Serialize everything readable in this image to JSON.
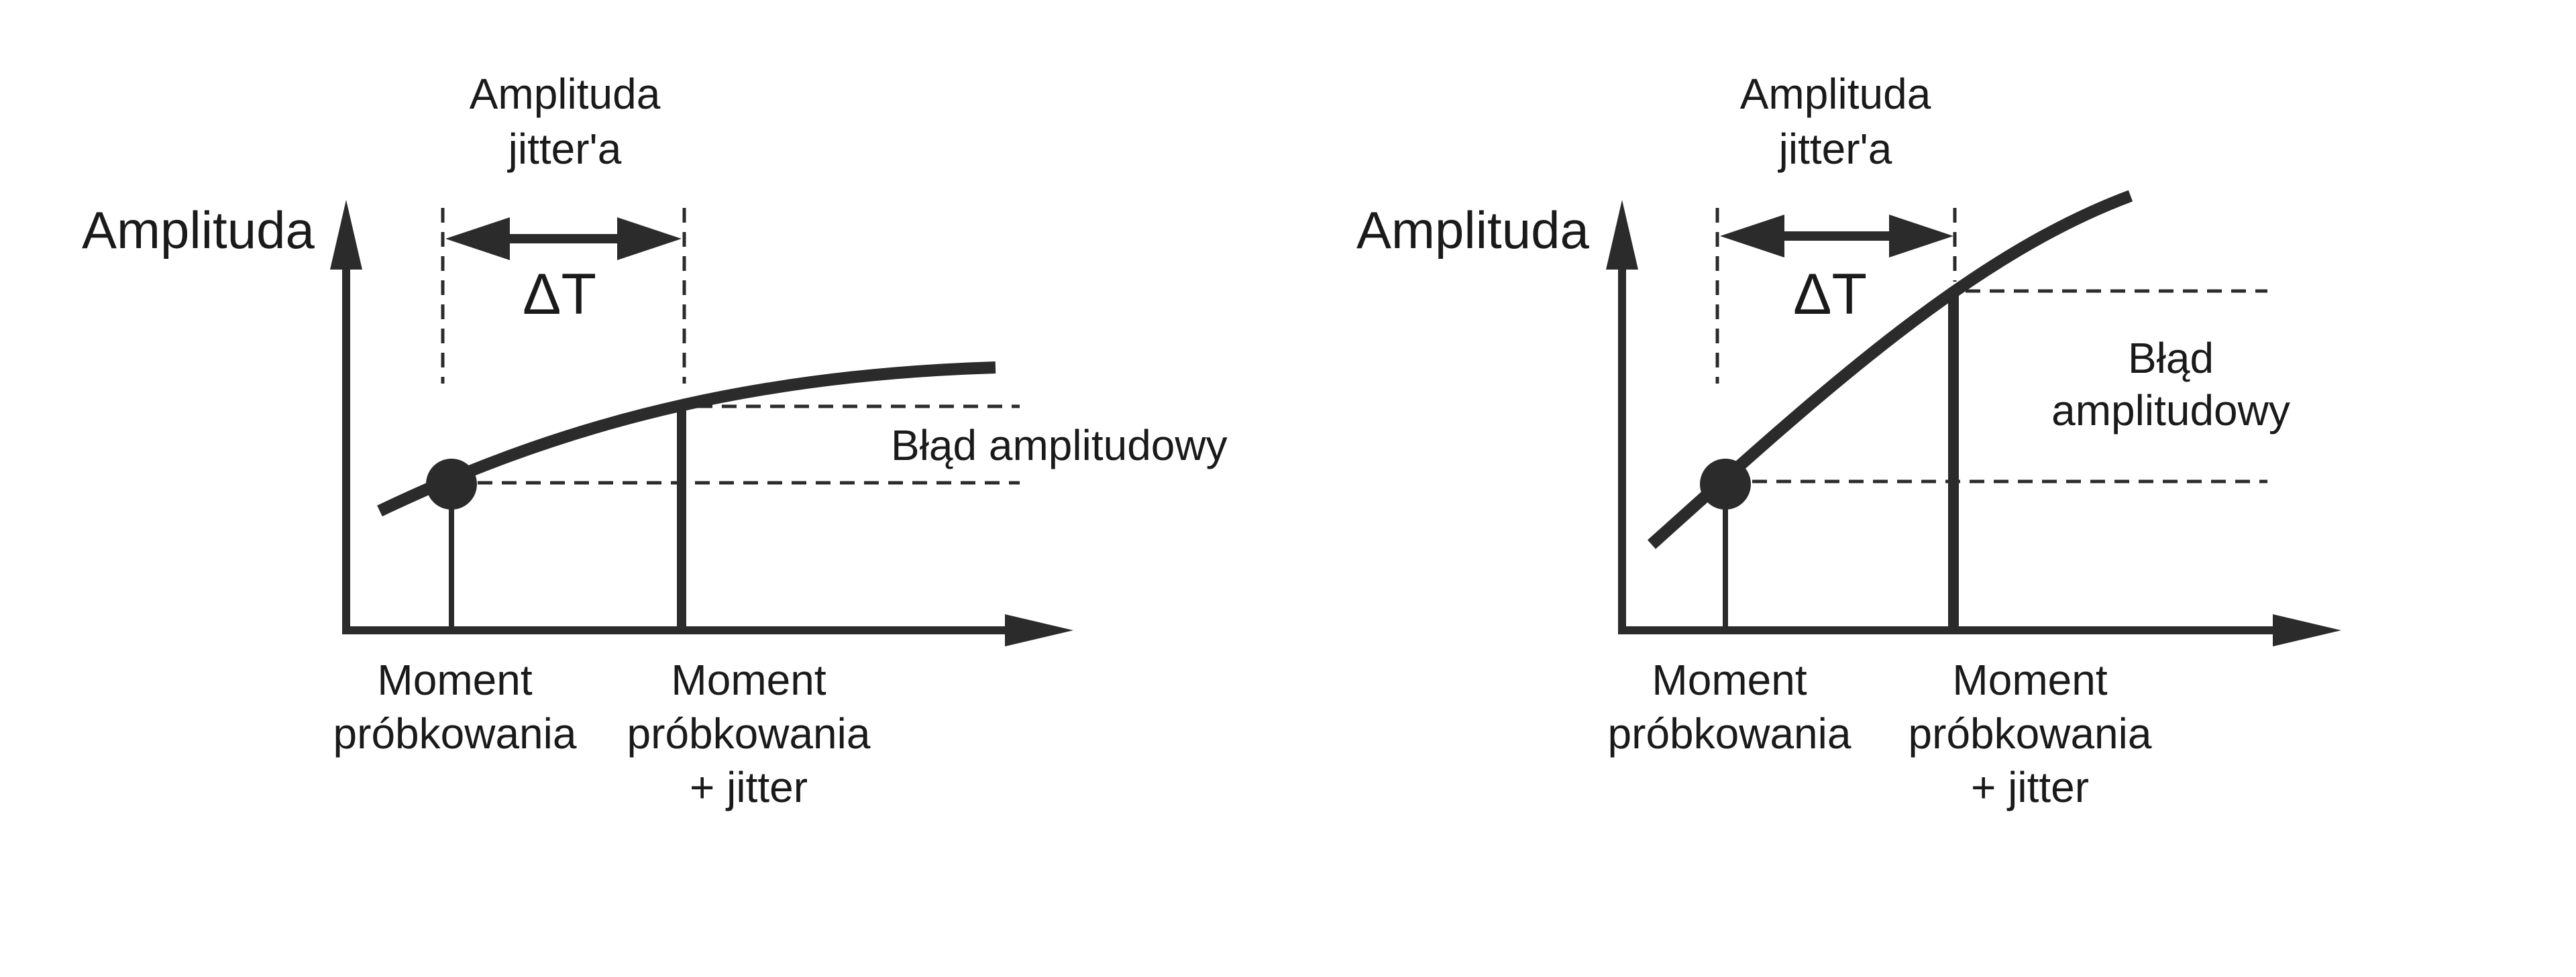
{
  "colors": {
    "ink": "#2b2b2b",
    "background": "#ffffff"
  },
  "panels": [
    {
      "id": "left",
      "y_axis_label": "Amplituda",
      "jitter_title_line1": "Amplituda",
      "jitter_title_line2": "jitter'a",
      "delta_label": "ΔT",
      "error_label_line1": "Błąd amplitudowy",
      "error_label_line2": "",
      "sample_label_line1": "Moment",
      "sample_label_line2": "próbkowania",
      "jitter_sample_label_line1": "Moment",
      "jitter_sample_label_line2": "próbkowania",
      "jitter_sample_label_line3": "+ jitter"
    },
    {
      "id": "right",
      "y_axis_label": "Amplituda",
      "jitter_title_line1": "Amplituda",
      "jitter_title_line2": "jitter'a",
      "delta_label": "ΔT",
      "error_label_line1": "Błąd",
      "error_label_line2": "amplitudowy",
      "sample_label_line1": "Moment",
      "sample_label_line2": "próbkowania",
      "jitter_sample_label_line1": "Moment",
      "jitter_sample_label_line2": "próbkowania",
      "jitter_sample_label_line3": "+ jitter"
    }
  ]
}
